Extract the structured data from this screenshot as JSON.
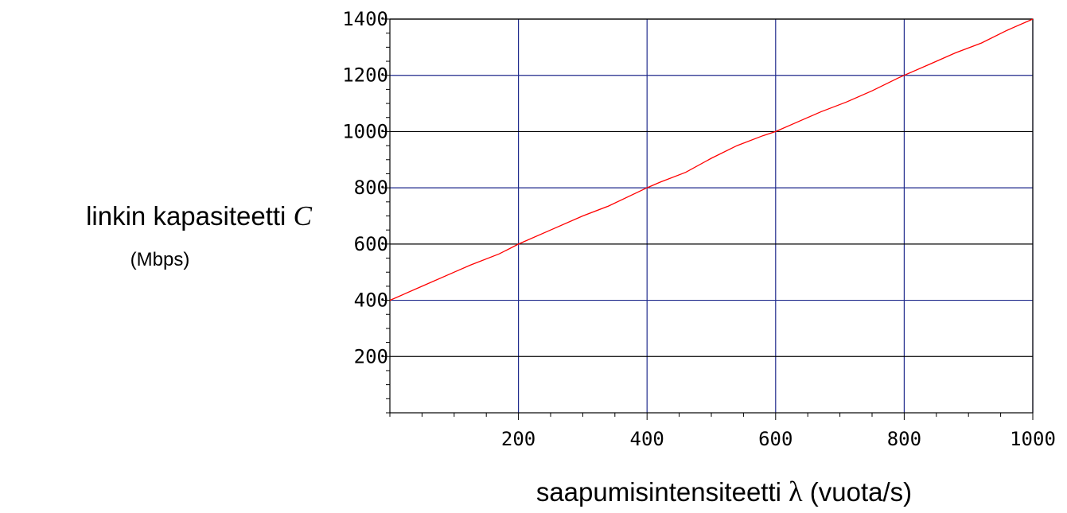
{
  "chart_data": {
    "type": "line",
    "x_tick_labels": [
      "200",
      "400",
      "600",
      "800",
      "1000"
    ],
    "y_tick_labels": [
      "200",
      "400",
      "600",
      "800",
      "1000",
      "1200",
      "1400"
    ],
    "xlim": [
      0,
      1000
    ],
    "ylim": [
      0,
      1400
    ],
    "x_ticks": [
      200,
      400,
      600,
      800,
      1000
    ],
    "y_ticks": [
      200,
      400,
      600,
      800,
      1000,
      1200,
      1400
    ],
    "x_minor_step": 50,
    "y_minor_step": 50,
    "grid": true,
    "xlabel_text": "saapumisintensiteetti ",
    "xlabel_symbol": "λ",
    "xlabel_unit": " (vuota/s)",
    "ylabel_text": "linkin kapasiteetti ",
    "ylabel_symbol": "C",
    "ylabel_unit": "(Mbps)",
    "series": [
      {
        "x": [
          0,
          50,
          100,
          125,
          170,
          200,
          250,
          300,
          340,
          400,
          420,
          460,
          500,
          540,
          580,
          600,
          630,
          670,
          710,
          750,
          790,
          800,
          840,
          880,
          920,
          960,
          1000
        ],
        "y": [
          400,
          450,
          500,
          525,
          565,
          600,
          650,
          700,
          735,
          800,
          820,
          855,
          905,
          950,
          985,
          1000,
          1030,
          1070,
          1105,
          1145,
          1190,
          1200,
          1240,
          1280,
          1315,
          1360,
          1400
        ]
      }
    ],
    "colors": {
      "line": "#ff0000",
      "grid_vertical": "#1f2a8c",
      "grid_horizontal_blue": "#1f2a8c",
      "grid_horizontal_black": "#000000",
      "frame": "#000000"
    }
  }
}
